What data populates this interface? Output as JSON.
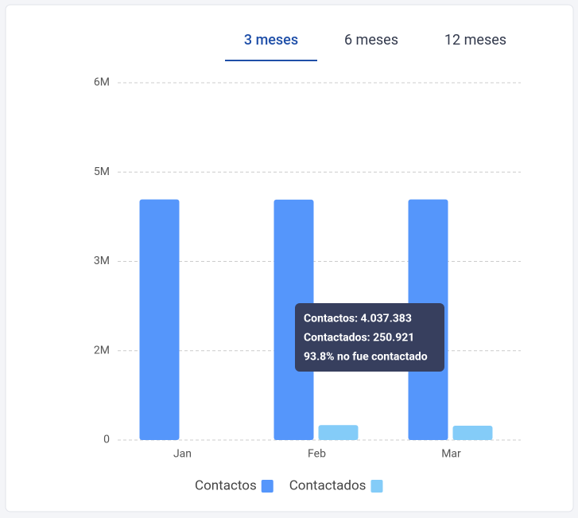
{
  "tabs": {
    "items": [
      "3 meses",
      "6 meses",
      "12 meses"
    ],
    "active": 0
  },
  "chart_data": {
    "type": "bar",
    "categories": [
      "Jan",
      "Feb",
      "Mar"
    ],
    "series": [
      {
        "name": "Contactos",
        "color": "#5596fb",
        "values": [
          4040000,
          4037383,
          4040000
        ]
      },
      {
        "name": "Contactados",
        "color": "#84ccf8",
        "values": [
          0,
          250921,
          240000
        ]
      }
    ],
    "ylim": [
      0,
      6000000
    ],
    "yticks": [
      0,
      {
        "value": 1500000,
        "label": "2M"
      },
      {
        "value": 3000000,
        "label": "3M"
      },
      {
        "value": 4500000,
        "label": "5M"
      },
      {
        "value": 6000000,
        "label": "6M"
      }
    ],
    "grid": true,
    "legend": "bottom",
    "tooltip": {
      "category": 1,
      "lines": [
        "Contactos: 4.037.383",
        "Contactados: 250.921",
        "93.8% no fue contactado"
      ]
    }
  }
}
